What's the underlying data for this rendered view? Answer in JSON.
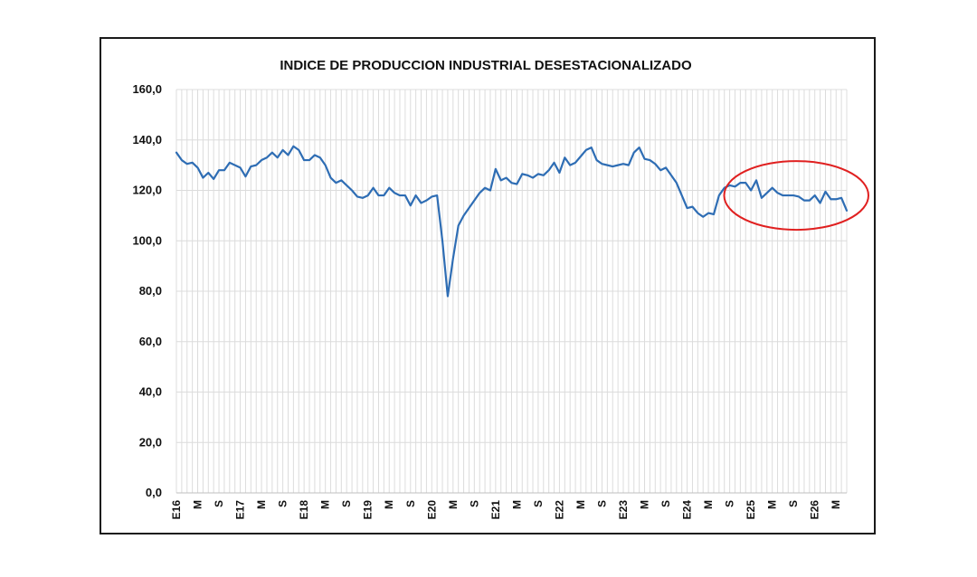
{
  "chart_data": {
    "type": "line",
    "title": "INDICE DE PRODUCCION INDUSTRIAL  DESESTACIONALIZADO",
    "xlabel": "",
    "ylabel": "",
    "ylim": [
      0,
      160
    ],
    "yticks": [
      "0,0",
      "20,0",
      "40,0",
      "60,0",
      "80,0",
      "100,0",
      "120,0",
      "140,0",
      "160,0"
    ],
    "xtick_labels": [
      "E16",
      "M",
      "S",
      "E17",
      "M",
      "S",
      "E18",
      "M",
      "S",
      "E19",
      "M",
      "S",
      "E20",
      "M",
      "S",
      "E21",
      "M",
      "S",
      "E22",
      "M",
      "S",
      "E23",
      "M",
      "S",
      "E24",
      "M",
      "S",
      "E25",
      "M",
      "S",
      "E26",
      "M"
    ],
    "grid": true,
    "legend": "none",
    "line_color": "#2e6db4",
    "highlight_color": "#e02020",
    "series": [
      {
        "values": [
          135,
          132,
          130.5,
          131,
          129,
          125,
          127,
          124.5,
          128,
          128,
          131,
          130,
          129,
          125.5,
          129.5,
          130,
          132,
          133,
          135,
          133,
          136,
          134,
          137.5,
          136,
          132,
          132,
          134,
          133,
          130,
          125,
          123,
          124,
          122,
          120,
          117.5,
          117,
          118,
          121,
          118,
          118,
          121,
          119,
          118,
          118,
          114,
          118,
          115,
          116,
          117.5,
          118,
          100,
          78,
          93,
          106,
          110,
          113,
          116,
          119,
          121,
          120,
          128.5,
          124,
          125,
          123,
          122.5,
          126.5,
          126,
          125,
          126.5,
          126,
          128,
          131,
          127,
          133,
          130,
          131,
          133.5,
          136,
          137,
          132,
          130.5,
          130,
          129.5,
          130,
          130.5,
          130,
          135,
          137,
          132.5,
          132,
          130.5,
          128,
          129,
          126,
          123,
          118,
          113,
          113.5,
          111,
          109.5,
          111,
          110.5,
          118,
          121,
          122,
          121.5,
          123,
          123,
          120,
          124,
          117,
          119,
          121,
          119,
          118,
          118,
          118,
          117.5,
          116,
          116,
          118,
          115,
          119.5,
          116.5,
          116.5,
          117,
          112
        ]
      }
    ]
  }
}
